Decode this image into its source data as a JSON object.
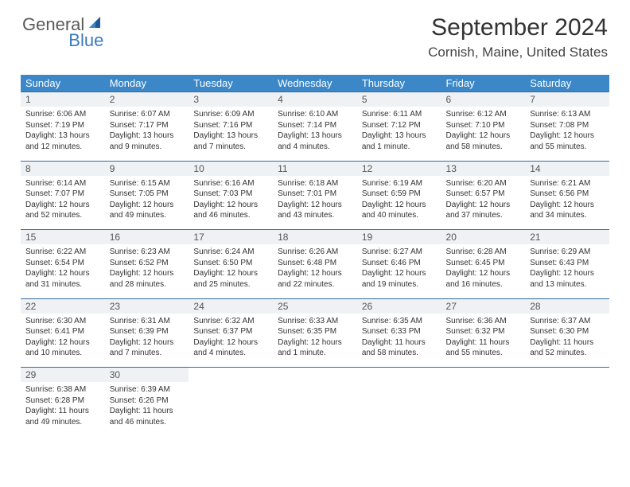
{
  "logo": {
    "part1": "General",
    "part2": "Blue"
  },
  "title": "September 2024",
  "location": "Cornish, Maine, United States",
  "header_bg": "#3b87c8",
  "header_fg": "#ffffff",
  "daynum_bg": "#eef2f5",
  "row_border": "#3b6a9a",
  "background_color": "#ffffff",
  "day_headers": [
    "Sunday",
    "Monday",
    "Tuesday",
    "Wednesday",
    "Thursday",
    "Friday",
    "Saturday"
  ],
  "days": [
    {
      "n": 1,
      "sunrise": "6:06 AM",
      "sunset": "7:19 PM",
      "daylight": "13 hours and 12 minutes."
    },
    {
      "n": 2,
      "sunrise": "6:07 AM",
      "sunset": "7:17 PM",
      "daylight": "13 hours and 9 minutes."
    },
    {
      "n": 3,
      "sunrise": "6:09 AM",
      "sunset": "7:16 PM",
      "daylight": "13 hours and 7 minutes."
    },
    {
      "n": 4,
      "sunrise": "6:10 AM",
      "sunset": "7:14 PM",
      "daylight": "13 hours and 4 minutes."
    },
    {
      "n": 5,
      "sunrise": "6:11 AM",
      "sunset": "7:12 PM",
      "daylight": "13 hours and 1 minute."
    },
    {
      "n": 6,
      "sunrise": "6:12 AM",
      "sunset": "7:10 PM",
      "daylight": "12 hours and 58 minutes."
    },
    {
      "n": 7,
      "sunrise": "6:13 AM",
      "sunset": "7:08 PM",
      "daylight": "12 hours and 55 minutes."
    },
    {
      "n": 8,
      "sunrise": "6:14 AM",
      "sunset": "7:07 PM",
      "daylight": "12 hours and 52 minutes."
    },
    {
      "n": 9,
      "sunrise": "6:15 AM",
      "sunset": "7:05 PM",
      "daylight": "12 hours and 49 minutes."
    },
    {
      "n": 10,
      "sunrise": "6:16 AM",
      "sunset": "7:03 PM",
      "daylight": "12 hours and 46 minutes."
    },
    {
      "n": 11,
      "sunrise": "6:18 AM",
      "sunset": "7:01 PM",
      "daylight": "12 hours and 43 minutes."
    },
    {
      "n": 12,
      "sunrise": "6:19 AM",
      "sunset": "6:59 PM",
      "daylight": "12 hours and 40 minutes."
    },
    {
      "n": 13,
      "sunrise": "6:20 AM",
      "sunset": "6:57 PM",
      "daylight": "12 hours and 37 minutes."
    },
    {
      "n": 14,
      "sunrise": "6:21 AM",
      "sunset": "6:56 PM",
      "daylight": "12 hours and 34 minutes."
    },
    {
      "n": 15,
      "sunrise": "6:22 AM",
      "sunset": "6:54 PM",
      "daylight": "12 hours and 31 minutes."
    },
    {
      "n": 16,
      "sunrise": "6:23 AM",
      "sunset": "6:52 PM",
      "daylight": "12 hours and 28 minutes."
    },
    {
      "n": 17,
      "sunrise": "6:24 AM",
      "sunset": "6:50 PM",
      "daylight": "12 hours and 25 minutes."
    },
    {
      "n": 18,
      "sunrise": "6:26 AM",
      "sunset": "6:48 PM",
      "daylight": "12 hours and 22 minutes."
    },
    {
      "n": 19,
      "sunrise": "6:27 AM",
      "sunset": "6:46 PM",
      "daylight": "12 hours and 19 minutes."
    },
    {
      "n": 20,
      "sunrise": "6:28 AM",
      "sunset": "6:45 PM",
      "daylight": "12 hours and 16 minutes."
    },
    {
      "n": 21,
      "sunrise": "6:29 AM",
      "sunset": "6:43 PM",
      "daylight": "12 hours and 13 minutes."
    },
    {
      "n": 22,
      "sunrise": "6:30 AM",
      "sunset": "6:41 PM",
      "daylight": "12 hours and 10 minutes."
    },
    {
      "n": 23,
      "sunrise": "6:31 AM",
      "sunset": "6:39 PM",
      "daylight": "12 hours and 7 minutes."
    },
    {
      "n": 24,
      "sunrise": "6:32 AM",
      "sunset": "6:37 PM",
      "daylight": "12 hours and 4 minutes."
    },
    {
      "n": 25,
      "sunrise": "6:33 AM",
      "sunset": "6:35 PM",
      "daylight": "12 hours and 1 minute."
    },
    {
      "n": 26,
      "sunrise": "6:35 AM",
      "sunset": "6:33 PM",
      "daylight": "11 hours and 58 minutes."
    },
    {
      "n": 27,
      "sunrise": "6:36 AM",
      "sunset": "6:32 PM",
      "daylight": "11 hours and 55 minutes."
    },
    {
      "n": 28,
      "sunrise": "6:37 AM",
      "sunset": "6:30 PM",
      "daylight": "11 hours and 52 minutes."
    },
    {
      "n": 29,
      "sunrise": "6:38 AM",
      "sunset": "6:28 PM",
      "daylight": "11 hours and 49 minutes."
    },
    {
      "n": 30,
      "sunrise": "6:39 AM",
      "sunset": "6:26 PM",
      "daylight": "11 hours and 46 minutes."
    }
  ],
  "labels": {
    "sunrise": "Sunrise:",
    "sunset": "Sunset:",
    "daylight": "Daylight:"
  },
  "start_weekday": 0,
  "fonts": {
    "title_size": 30,
    "location_size": 17,
    "header_size": 13,
    "daynum_size": 12,
    "cell_size": 10
  }
}
